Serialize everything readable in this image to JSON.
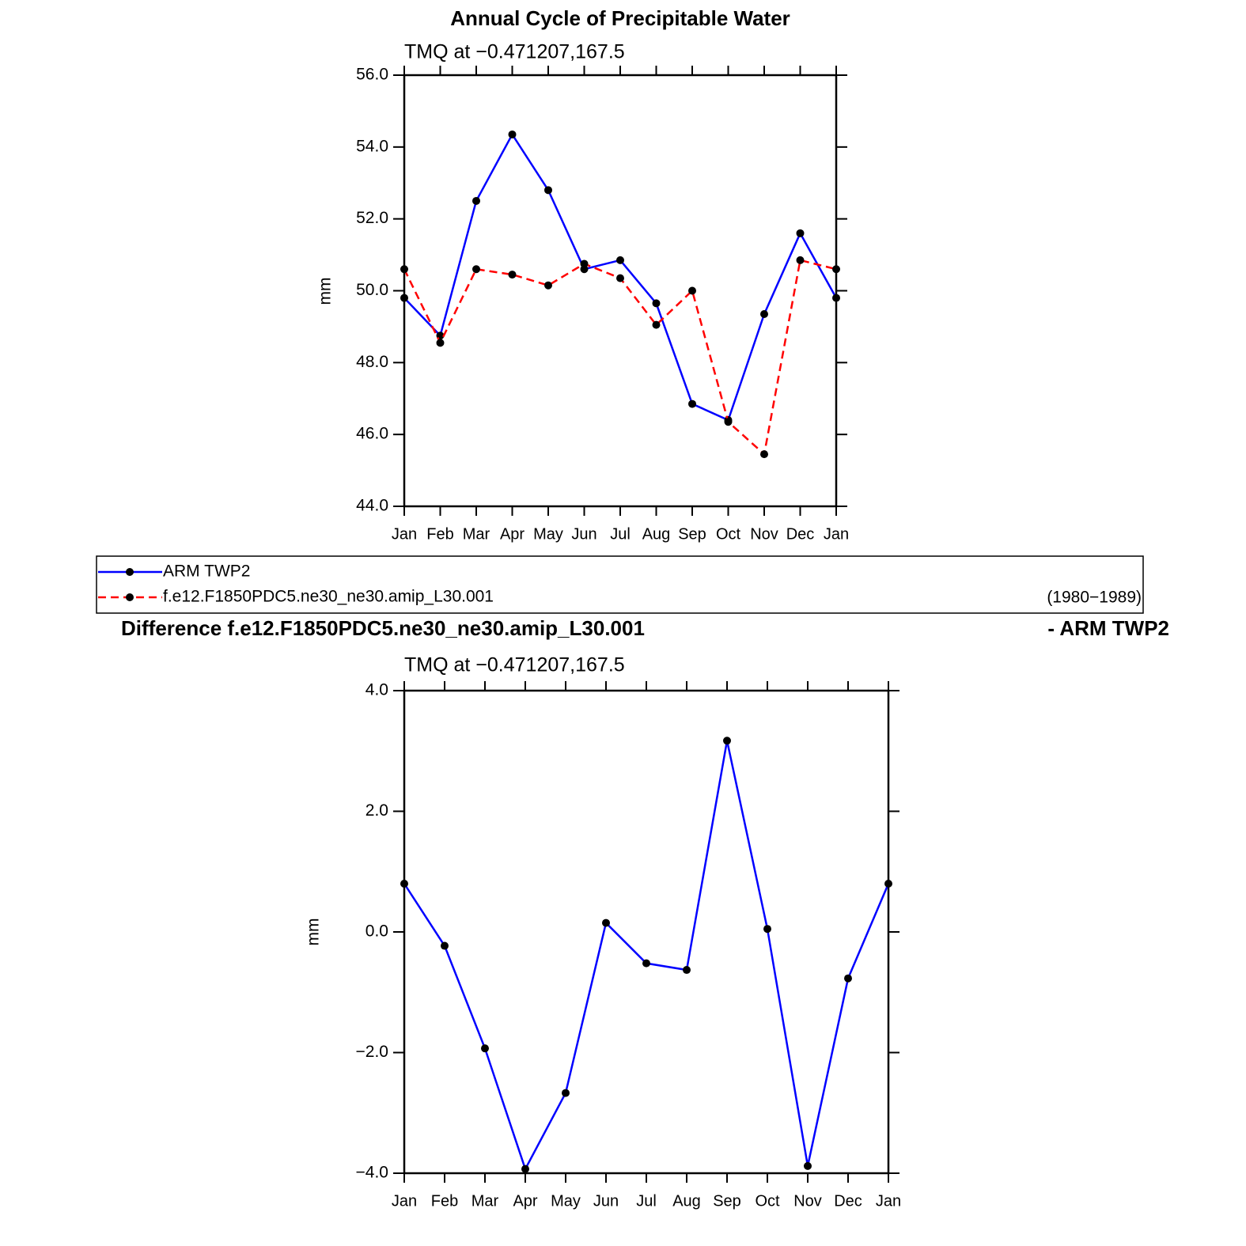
{
  "chart_data": [
    {
      "type": "line",
      "title": "Annual Cycle of Precipitable Water",
      "subtitle": "TMQ at −0.471207,167.5",
      "y_label": "mm",
      "categories": [
        "Jan",
        "Feb",
        "Mar",
        "Apr",
        "May",
        "Jun",
        "Jul",
        "Aug",
        "Sep",
        "Oct",
        "Nov",
        "Dec",
        "Jan"
      ],
      "series": [
        {
          "name": "ARM TWP2",
          "color": "#0000ff",
          "line_style": "solid",
          "marker_color": "#000000",
          "values": [
            49.8,
            48.75,
            52.5,
            54.35,
            52.8,
            50.6,
            50.85,
            49.65,
            46.85,
            46.4,
            49.35,
            51.6,
            49.8
          ]
        },
        {
          "name": "f.e12.F1850PDC5.ne30_ne30.amip_L30.001",
          "color": "#ff0000",
          "line_style": "dashed",
          "marker_color": "#000000",
          "values": [
            50.6,
            48.55,
            50.6,
            50.45,
            50.15,
            50.75,
            50.35,
            49.05,
            50.0,
            46.35,
            45.45,
            50.85,
            50.6
          ]
        }
      ],
      "legend_note": "(1980−1989)",
      "ylim": [
        44,
        56
      ],
      "yticks": [
        {
          "value": 44,
          "label": "44.0"
        },
        {
          "value": 46,
          "label": "46.0"
        },
        {
          "value": 48,
          "label": "48.0"
        },
        {
          "value": 50,
          "label": "50.0"
        },
        {
          "value": 52,
          "label": "52.0"
        },
        {
          "value": 54,
          "label": "54.0"
        },
        {
          "value": 56,
          "label": "56.0"
        }
      ]
    },
    {
      "type": "line",
      "title": "Difference f.e12.F1850PDC5.ne30_ne30.amip_L30.001",
      "title_right": "- ARM TWP2",
      "subtitle": "TMQ at −0.471207,167.5",
      "y_label": "mm",
      "categories": [
        "Jan",
        "Feb",
        "Mar",
        "Apr",
        "May",
        "Jun",
        "Jul",
        "Aug",
        "Sep",
        "Oct",
        "Nov",
        "Dec",
        "Jan"
      ],
      "series": [
        {
          "color": "#0000ff",
          "line_style": "solid",
          "marker_color": "#000000",
          "values": [
            0.8,
            -0.23,
            -1.93,
            -3.93,
            -2.67,
            0.15,
            -0.52,
            -0.63,
            3.17,
            0.05,
            -3.88,
            -0.77,
            0.8
          ]
        }
      ],
      "ylim": [
        -4,
        4
      ],
      "yticks": [
        {
          "value": -4,
          "label": "−4.0"
        },
        {
          "value": -2,
          "label": "−2.0"
        },
        {
          "value": 0,
          "label": "0.0"
        },
        {
          "value": 2,
          "label": "2.0"
        },
        {
          "value": 4,
          "label": "4.0"
        }
      ]
    }
  ]
}
